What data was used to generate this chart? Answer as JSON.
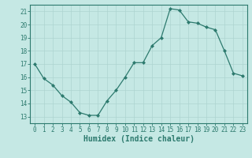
{
  "x": [
    0,
    1,
    2,
    3,
    4,
    5,
    6,
    7,
    8,
    9,
    10,
    11,
    12,
    13,
    14,
    15,
    16,
    17,
    18,
    19,
    20,
    21,
    22,
    23
  ],
  "y": [
    17.0,
    15.9,
    15.4,
    14.6,
    14.1,
    13.3,
    13.1,
    13.1,
    14.2,
    15.0,
    16.0,
    17.1,
    17.1,
    18.4,
    19.0,
    21.2,
    21.1,
    20.2,
    20.1,
    19.8,
    19.6,
    18.0,
    16.3,
    16.1
  ],
  "line_color": "#2d7a6e",
  "marker": "D",
  "marker_size": 2.0,
  "bg_color": "#c5e8e4",
  "grid_color": "#aed4d0",
  "xlabel": "Humidex (Indice chaleur)",
  "ylim_min": 13,
  "ylim_max": 21,
  "xlim_min": 0,
  "xlim_max": 23,
  "yticks": [
    13,
    14,
    15,
    16,
    17,
    18,
    19,
    20,
    21
  ],
  "xticks": [
    0,
    1,
    2,
    3,
    4,
    5,
    6,
    7,
    8,
    9,
    10,
    11,
    12,
    13,
    14,
    15,
    16,
    17,
    18,
    19,
    20,
    21,
    22,
    23
  ],
  "tick_fontsize": 5.5,
  "xlabel_fontsize": 7.0,
  "linewidth": 0.9
}
